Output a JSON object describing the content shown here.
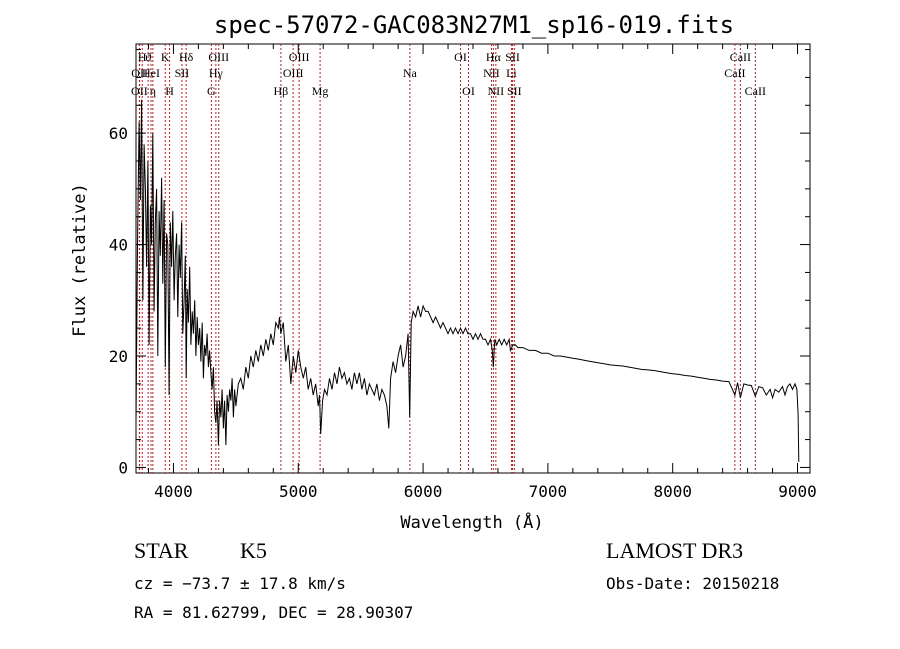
{
  "chart_data": {
    "type": "line",
    "title": "spec-57072-GAC083N27M1_sp16-019.fits",
    "xlabel": "Wavelength (Å)",
    "ylabel": "Flux (relative)",
    "xlim": [
      3700,
      9100
    ],
    "ylim": [
      -1,
      76
    ],
    "xticks": [
      4000,
      5000,
      6000,
      7000,
      8000,
      9000
    ],
    "yticks": [
      0,
      20,
      40,
      60
    ],
    "x_minor_step": 200,
    "y_minor_step": 5,
    "line_color": "#000000",
    "marker_color": "#b22222",
    "grid": false,
    "series": [
      {
        "points": [
          [
            3700,
            8
          ],
          [
            3712,
            40
          ],
          [
            3725,
            62
          ],
          [
            3735,
            48
          ],
          [
            3745,
            66
          ],
          [
            3755,
            30
          ],
          [
            3765,
            58
          ],
          [
            3775,
            50
          ],
          [
            3785,
            36
          ],
          [
            3795,
            55
          ],
          [
            3805,
            22
          ],
          [
            3815,
            47
          ],
          [
            3825,
            40
          ],
          [
            3835,
            60
          ],
          [
            3845,
            28
          ],
          [
            3855,
            44
          ],
          [
            3865,
            50
          ],
          [
            3875,
            20
          ],
          [
            3885,
            46
          ],
          [
            3895,
            38
          ],
          [
            3905,
            52
          ],
          [
            3915,
            33
          ],
          [
            3925,
            48
          ],
          [
            3935,
            18
          ],
          [
            3945,
            42
          ],
          [
            3955,
            40
          ],
          [
            3965,
            13
          ],
          [
            3975,
            44
          ],
          [
            3985,
            36
          ],
          [
            3995,
            46
          ],
          [
            4005,
            30
          ],
          [
            4015,
            38
          ],
          [
            4025,
            42
          ],
          [
            4035,
            27
          ],
          [
            4045,
            40
          ],
          [
            4055,
            34
          ],
          [
            4065,
            44
          ],
          [
            4075,
            24
          ],
          [
            4085,
            30
          ],
          [
            4095,
            38
          ],
          [
            4102,
            16
          ],
          [
            4110,
            32
          ],
          [
            4120,
            26
          ],
          [
            4130,
            36
          ],
          [
            4140,
            22
          ],
          [
            4150,
            28
          ],
          [
            4160,
            24
          ],
          [
            4170,
            30
          ],
          [
            4180,
            20
          ],
          [
            4190,
            27
          ],
          [
            4200,
            22
          ],
          [
            4210,
            25
          ],
          [
            4220,
            19
          ],
          [
            4230,
            26
          ],
          [
            4240,
            16
          ],
          [
            4250,
            22
          ],
          [
            4260,
            20
          ],
          [
            4270,
            24
          ],
          [
            4280,
            18
          ],
          [
            4290,
            21
          ],
          [
            4300,
            17
          ],
          [
            4310,
            14
          ],
          [
            4320,
            18
          ],
          [
            4330,
            10
          ],
          [
            4340,
            8
          ],
          [
            4350,
            12
          ],
          [
            4360,
            4
          ],
          [
            4370,
            12
          ],
          [
            4380,
            9
          ],
          [
            4390,
            14
          ],
          [
            4400,
            7
          ],
          [
            4410,
            12
          ],
          [
            4420,
            4
          ],
          [
            4430,
            13
          ],
          [
            4440,
            10
          ],
          [
            4450,
            14
          ],
          [
            4460,
            12
          ],
          [
            4470,
            16
          ],
          [
            4480,
            9
          ],
          [
            4490,
            14
          ],
          [
            4500,
            11
          ],
          [
            4520,
            15
          ],
          [
            4540,
            16
          ],
          [
            4560,
            14
          ],
          [
            4580,
            18
          ],
          [
            4600,
            16
          ],
          [
            4620,
            20
          ],
          [
            4640,
            18
          ],
          [
            4660,
            21
          ],
          [
            4680,
            19
          ],
          [
            4700,
            22
          ],
          [
            4720,
            20
          ],
          [
            4740,
            23
          ],
          [
            4760,
            21
          ],
          [
            4780,
            24
          ],
          [
            4800,
            22
          ],
          [
            4820,
            26
          ],
          [
            4840,
            25
          ],
          [
            4850,
            27
          ],
          [
            4860,
            24
          ],
          [
            4880,
            26
          ],
          [
            4900,
            19
          ],
          [
            4920,
            22
          ],
          [
            4940,
            15
          ],
          [
            4960,
            20
          ],
          [
            4980,
            17
          ],
          [
            5000,
            21
          ],
          [
            5020,
            18
          ],
          [
            5040,
            16
          ],
          [
            5060,
            18
          ],
          [
            5080,
            14
          ],
          [
            5100,
            16
          ],
          [
            5120,
            13
          ],
          [
            5140,
            15
          ],
          [
            5160,
            11
          ],
          [
            5170,
            13
          ],
          [
            5180,
            6
          ],
          [
            5195,
            12
          ],
          [
            5210,
            14
          ],
          [
            5230,
            13
          ],
          [
            5250,
            16
          ],
          [
            5270,
            14
          ],
          [
            5290,
            17
          ],
          [
            5310,
            15
          ],
          [
            5330,
            18
          ],
          [
            5350,
            16
          ],
          [
            5370,
            17
          ],
          [
            5390,
            15
          ],
          [
            5410,
            16
          ],
          [
            5430,
            14
          ],
          [
            5450,
            17
          ],
          [
            5470,
            15
          ],
          [
            5490,
            17
          ],
          [
            5510,
            14
          ],
          [
            5530,
            16
          ],
          [
            5550,
            13
          ],
          [
            5570,
            15
          ],
          [
            5590,
            14
          ],
          [
            5610,
            13
          ],
          [
            5630,
            15
          ],
          [
            5650,
            12
          ],
          [
            5670,
            14
          ],
          [
            5690,
            13
          ],
          [
            5710,
            11
          ],
          [
            5725,
            7
          ],
          [
            5740,
            16
          ],
          [
            5760,
            19
          ],
          [
            5780,
            17
          ],
          [
            5800,
            20
          ],
          [
            5820,
            22
          ],
          [
            5840,
            18
          ],
          [
            5860,
            20
          ],
          [
            5880,
            24
          ],
          [
            5893,
            9
          ],
          [
            5905,
            26
          ],
          [
            5920,
            28
          ],
          [
            5940,
            27
          ],
          [
            5960,
            29
          ],
          [
            5980,
            27
          ],
          [
            6000,
            29
          ],
          [
            6020,
            28
          ],
          [
            6040,
            28
          ],
          [
            6060,
            27
          ],
          [
            6080,
            26
          ],
          [
            6100,
            27
          ],
          [
            6120,
            26
          ],
          [
            6140,
            25
          ],
          [
            6160,
            26
          ],
          [
            6180,
            25
          ],
          [
            6200,
            24
          ],
          [
            6220,
            25
          ],
          [
            6240,
            24
          ],
          [
            6260,
            25
          ],
          [
            6280,
            24
          ],
          [
            6300,
            25
          ],
          [
            6320,
            24
          ],
          [
            6340,
            25
          ],
          [
            6360,
            24
          ],
          [
            6380,
            24
          ],
          [
            6400,
            23
          ],
          [
            6420,
            24
          ],
          [
            6440,
            23
          ],
          [
            6460,
            24
          ],
          [
            6480,
            23
          ],
          [
            6500,
            23
          ],
          [
            6520,
            22
          ],
          [
            6540,
            23
          ],
          [
            6555,
            21
          ],
          [
            6563,
            18
          ],
          [
            6575,
            23
          ],
          [
            6590,
            22
          ],
          [
            6610,
            23
          ],
          [
            6630,
            22
          ],
          [
            6650,
            23
          ],
          [
            6670,
            22
          ],
          [
            6690,
            23
          ],
          [
            6700,
            21
          ],
          [
            6720,
            22
          ],
          [
            6740,
            22
          ],
          [
            6760,
            21.5
          ],
          [
            6800,
            21.5
          ],
          [
            6850,
            21
          ],
          [
            6900,
            21
          ],
          [
            6950,
            20.5
          ],
          [
            7000,
            20.5
          ],
          [
            7050,
            20
          ],
          [
            7100,
            20
          ],
          [
            7150,
            19.8
          ],
          [
            7200,
            19.6
          ],
          [
            7250,
            19.4
          ],
          [
            7300,
            19.2
          ],
          [
            7350,
            19
          ],
          [
            7400,
            18.8
          ],
          [
            7450,
            18.6
          ],
          [
            7500,
            18.4
          ],
          [
            7550,
            18.3
          ],
          [
            7600,
            18.2
          ],
          [
            7650,
            18
          ],
          [
            7700,
            17.8
          ],
          [
            7750,
            17.6
          ],
          [
            7800,
            17.5
          ],
          [
            7850,
            17.4
          ],
          [
            7900,
            17.2
          ],
          [
            7950,
            17
          ],
          [
            8000,
            16.8
          ],
          [
            8050,
            16.7
          ],
          [
            8100,
            16.5
          ],
          [
            8150,
            16.4
          ],
          [
            8200,
            16.2
          ],
          [
            8250,
            16
          ],
          [
            8300,
            15.8
          ],
          [
            8350,
            15.7
          ],
          [
            8400,
            15.5
          ],
          [
            8450,
            15.4
          ],
          [
            8498,
            13
          ],
          [
            8520,
            15.2
          ],
          [
            8542,
            12.5
          ],
          [
            8570,
            15
          ],
          [
            8600,
            14.8
          ],
          [
            8630,
            14.7
          ],
          [
            8662,
            12.8
          ],
          [
            8690,
            14.5
          ],
          [
            8720,
            14.3
          ],
          [
            8750,
            13
          ],
          [
            8780,
            14
          ],
          [
            8800,
            12.5
          ],
          [
            8820,
            14
          ],
          [
            8850,
            13.5
          ],
          [
            8880,
            14.5
          ],
          [
            8900,
            13
          ],
          [
            8920,
            14.5
          ],
          [
            8940,
            15
          ],
          [
            8960,
            14
          ],
          [
            8980,
            15
          ],
          [
            8995,
            14
          ],
          [
            9005,
            9.5
          ],
          [
            9010,
            1
          ]
        ]
      }
    ],
    "lines": [
      {
        "label": "OII",
        "x": 3727,
        "row": 2
      },
      {
        "label": "H",
        "x": 3750,
        "row": 0
      },
      {
        "label": "OII",
        "x": 3729,
        "row": 1
      },
      {
        "label": "ϑ",
        "x": 3797,
        "row": 0
      },
      {
        "label": "HeI",
        "x": 3820,
        "row": 1
      },
      {
        "label": "η",
        "x": 3835,
        "row": 2
      },
      {
        "label": "K",
        "x": 3934,
        "row": 0
      },
      {
        "label": "H",
        "x": 3969,
        "row": 2
      },
      {
        "label": "SII",
        "x": 4068,
        "row": 1
      },
      {
        "label": "Hδ",
        "x": 4102,
        "row": 0
      },
      {
        "label": "G",
        "x": 4304,
        "row": 2
      },
      {
        "label": "Hγ",
        "x": 4340,
        "row": 1
      },
      {
        "label": "OIII",
        "x": 4363,
        "row": 0
      },
      {
        "label": "Hβ",
        "x": 4861,
        "row": 2
      },
      {
        "label": "OIII",
        "x": 4959,
        "row": 1
      },
      {
        "label": "OIII",
        "x": 5007,
        "row": 0
      },
      {
        "label": "Mg",
        "x": 5175,
        "row": 2
      },
      {
        "label": "Na",
        "x": 5894,
        "row": 1
      },
      {
        "label": "OI",
        "x": 6300,
        "row": 0
      },
      {
        "label": "OI",
        "x": 6364,
        "row": 2
      },
      {
        "label": "NII",
        "x": 6548,
        "row": 1
      },
      {
        "label": "Hα",
        "x": 6563,
        "row": 0
      },
      {
        "label": "NII",
        "x": 6583,
        "row": 2
      },
      {
        "label": "Li",
        "x": 6708,
        "row": 1
      },
      {
        "label": "SII",
        "x": 6717,
        "row": 0
      },
      {
        "label": "SII",
        "x": 6731,
        "row": 2
      },
      {
        "label": "CaII",
        "x": 8498,
        "row": 1
      },
      {
        "label": "CaII",
        "x": 8542,
        "row": 0
      },
      {
        "label": "CaII",
        "x": 8662,
        "row": 2
      }
    ]
  },
  "info": {
    "class": "STAR",
    "subclass": "K5",
    "survey": "LAMOST DR3",
    "cz": "cz = −73.7 ± 17.8 km/s",
    "obs_date": "Obs-Date: 20150218",
    "coords": "RA =  81.62799, DEC =  28.90307"
  }
}
